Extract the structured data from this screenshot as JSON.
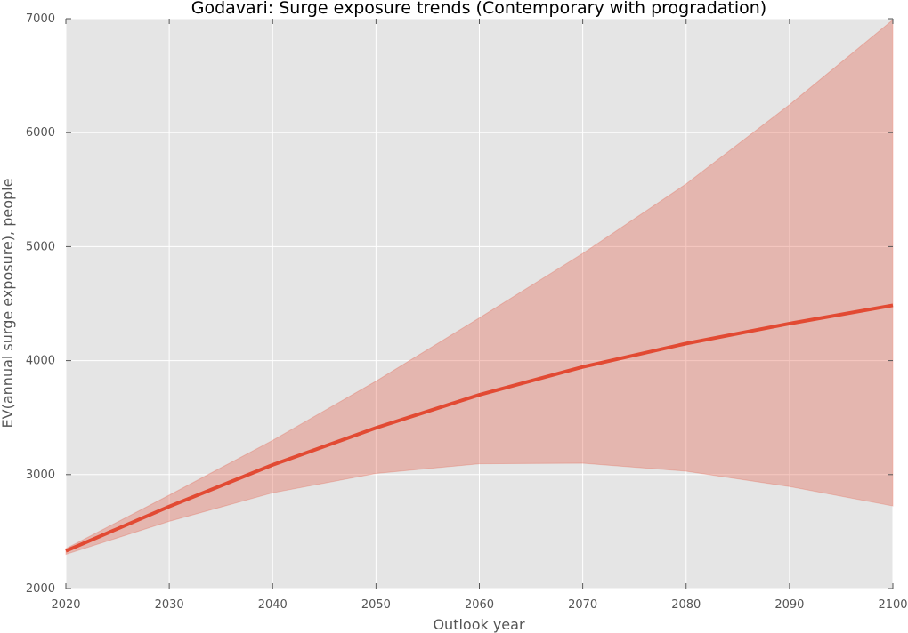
{
  "chart_data": {
    "type": "line",
    "title": "Godavari: Surge exposure trends (Contemporary with progradation)",
    "xlabel": "Outlook year",
    "ylabel": "EV(annual surge exposure), people",
    "xlim": [
      2020,
      2100
    ],
    "ylim": [
      2000,
      7000
    ],
    "x_ticks": [
      2020,
      2030,
      2040,
      2050,
      2060,
      2070,
      2080,
      2090,
      2100
    ],
    "y_ticks": [
      2000,
      3000,
      4000,
      5000,
      6000,
      7000
    ],
    "grid": true,
    "x": [
      2020,
      2030,
      2040,
      2050,
      2060,
      2070,
      2080,
      2090,
      2100
    ],
    "series": [
      {
        "values": [
          2330,
          2720,
          3085,
          3410,
          3700,
          3945,
          4150,
          4325,
          4485
        ],
        "band_lower": [
          2300,
          2590,
          2840,
          3010,
          3095,
          3100,
          3030,
          2895,
          2725
        ],
        "band_upper": [
          2350,
          2820,
          3300,
          3820,
          4375,
          4940,
          5550,
          6245,
          6990
        ],
        "color": "#e24a33"
      }
    ],
    "colors": {
      "background": "#e5e5e5",
      "grid": "#ffffff",
      "band_fill": "#e24a33"
    }
  }
}
